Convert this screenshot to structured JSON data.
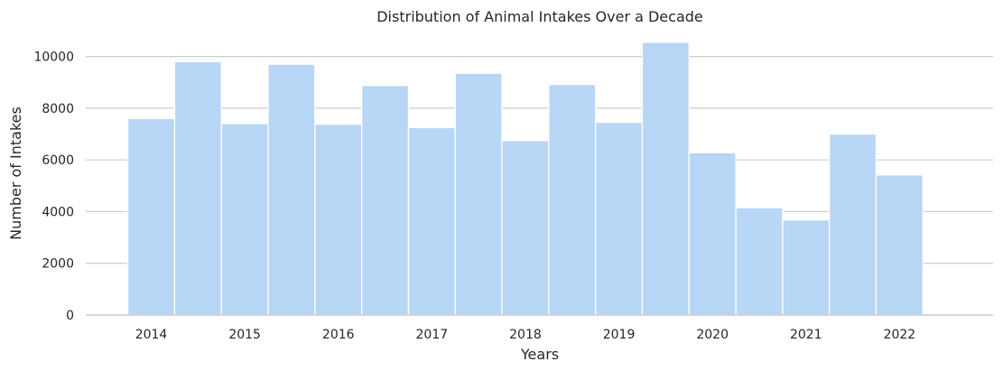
{
  "chart_data": {
    "type": "bar",
    "title": "Distribution of Animal Intakes Over a Decade",
    "xlabel": "Years",
    "ylabel": "Number of Intakes",
    "x_ticks": [
      "2014",
      "2015",
      "2016",
      "2017",
      "2018",
      "2019",
      "2020",
      "2021",
      "2022"
    ],
    "y_ticks": [
      "0",
      "2000",
      "4000",
      "6000",
      "8000",
      "10000"
    ],
    "xlim": [
      2013.3,
      2023.0
    ],
    "ylim": [
      0,
      11000
    ],
    "bins": [
      {
        "start": 2013.75,
        "end": 2014.25,
        "value": 7600
      },
      {
        "start": 2014.25,
        "end": 2014.75,
        "value": 9800
      },
      {
        "start": 2014.75,
        "end": 2015.25,
        "value": 7400
      },
      {
        "start": 2015.25,
        "end": 2015.75,
        "value": 9700
      },
      {
        "start": 2015.75,
        "end": 2016.25,
        "value": 7380
      },
      {
        "start": 2016.25,
        "end": 2016.75,
        "value": 8880
      },
      {
        "start": 2016.75,
        "end": 2017.25,
        "value": 7250
      },
      {
        "start": 2017.25,
        "end": 2017.75,
        "value": 9350
      },
      {
        "start": 2017.75,
        "end": 2018.25,
        "value": 6750
      },
      {
        "start": 2018.25,
        "end": 2018.75,
        "value": 8920
      },
      {
        "start": 2018.75,
        "end": 2019.25,
        "value": 7450
      },
      {
        "start": 2019.25,
        "end": 2019.75,
        "value": 10550
      },
      {
        "start": 2019.75,
        "end": 2020.25,
        "value": 6280
      },
      {
        "start": 2020.25,
        "end": 2020.75,
        "value": 4150
      },
      {
        "start": 2020.75,
        "end": 2021.25,
        "value": 3680
      },
      {
        "start": 2021.25,
        "end": 2021.75,
        "value": 7000
      },
      {
        "start": 2021.75,
        "end": 2022.25,
        "value": 5420
      }
    ],
    "bar_color": "#b8d6f5",
    "grid": true,
    "grid_axis": "y",
    "legend": "none"
  }
}
